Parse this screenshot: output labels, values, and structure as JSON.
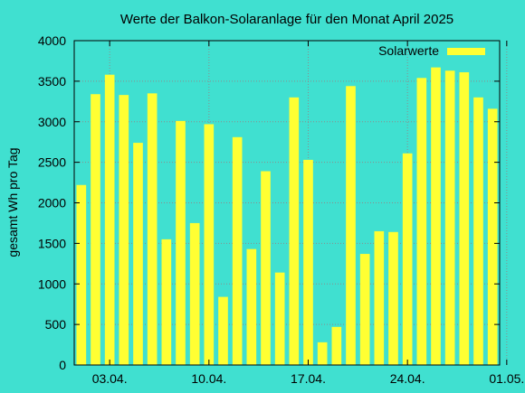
{
  "chart_data": {
    "type": "bar",
    "title": "Werte der Balkon-Solaranlage für den Monat April 2025",
    "ylabel": "gesamt Wh pro Tag",
    "xlabel": "",
    "ylim": [
      0,
      4000
    ],
    "yticks": [
      0,
      500,
      1000,
      1500,
      2000,
      2500,
      3000,
      3500,
      4000
    ],
    "xticks": [
      {
        "at": 2,
        "label": "03.04."
      },
      {
        "at": 9,
        "label": "10.04."
      },
      {
        "at": 16,
        "label": "17.04."
      },
      {
        "at": 23,
        "label": "24.04."
      },
      {
        "at": 30,
        "label": "01.05."
      }
    ],
    "grid": true,
    "legend_position": "top-right",
    "series": [
      {
        "name": "Solarwerte",
        "color": "#FFFF33",
        "values": [
          2220,
          3340,
          3580,
          3330,
          2740,
          3350,
          1550,
          3010,
          1750,
          2970,
          840,
          2810,
          1430,
          2390,
          1140,
          3300,
          2530,
          280,
          470,
          3440,
          1370,
          1650,
          1640,
          2610,
          3540,
          3670,
          3630,
          3610,
          3300,
          3160
        ]
      }
    ]
  },
  "colors": {
    "background": "#40E0D0",
    "bar": "#FFFF33",
    "grid": "#8C8C8C",
    "axis": "#000000"
  }
}
